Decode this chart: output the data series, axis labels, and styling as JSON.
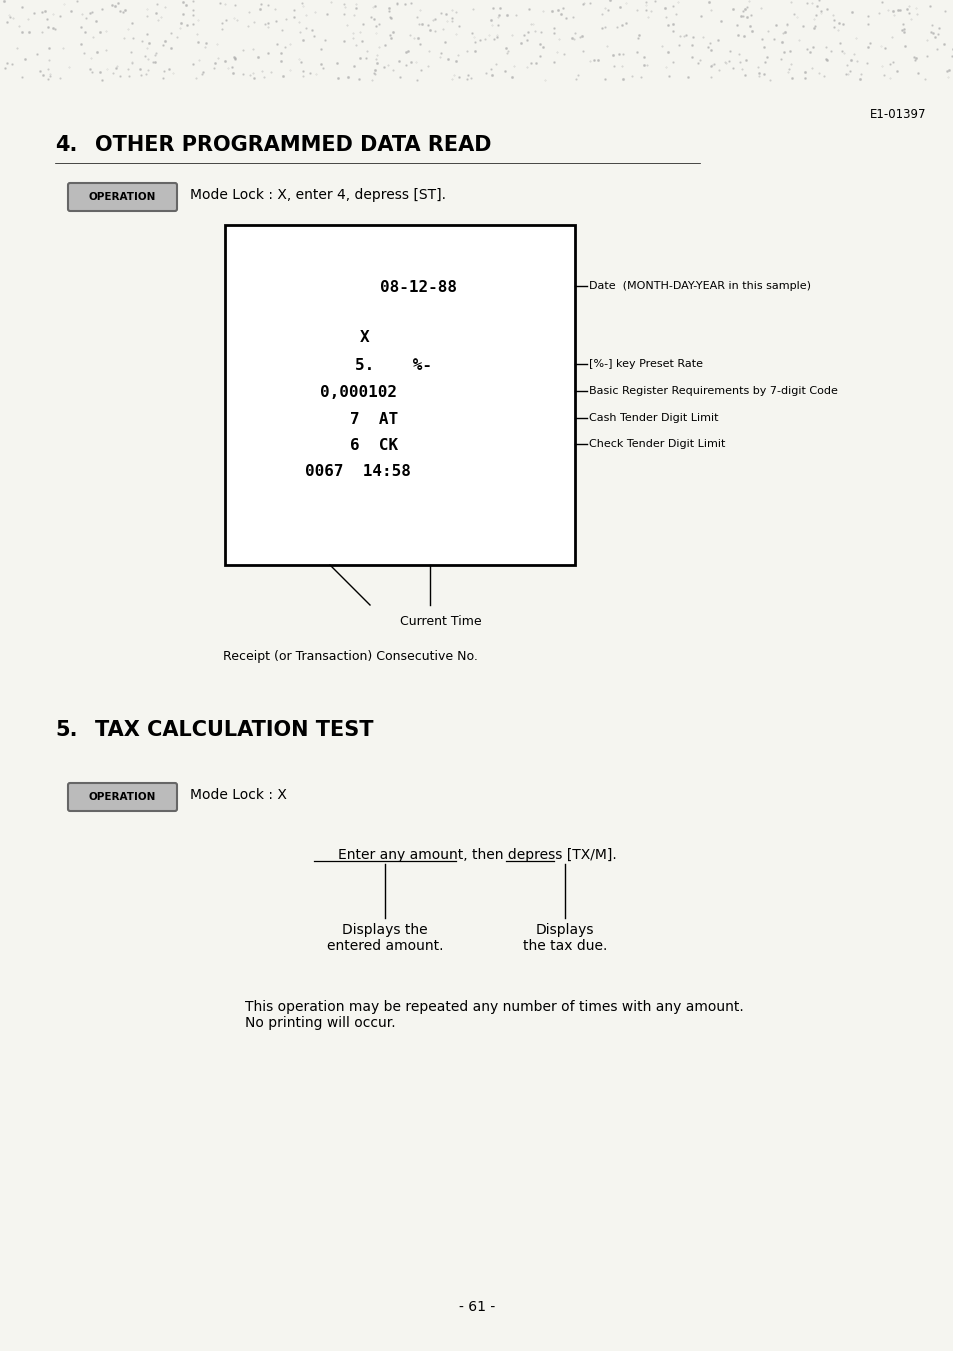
{
  "page_id": "E1-01397",
  "bg_color": "#f5f5f0",
  "section4_number": "4.",
  "section4_title": "OTHER PROGRAMMED DATA READ",
  "operation_label": "OPERATION",
  "section4_operation_text": "Mode Lock : X, enter 4, depress [ST].",
  "section5_number": "5.",
  "section5_title": "TAX CALCULATION TEST",
  "section5_operation_text": "Mode Lock : X",
  "diagram_text": "Enter any amount, then depress [TX/M].",
  "label_left": "Displays the\nentered amount.",
  "label_right": "Displays\nthe tax due.",
  "body_text": "This operation may be repeated any number of times with any amount.\nNo printing will occur.",
  "page_number": "- 61 -",
  "label_current_time": "Current Time",
  "label_receipt_no": "Receipt (or Transaction) Consecutive No."
}
